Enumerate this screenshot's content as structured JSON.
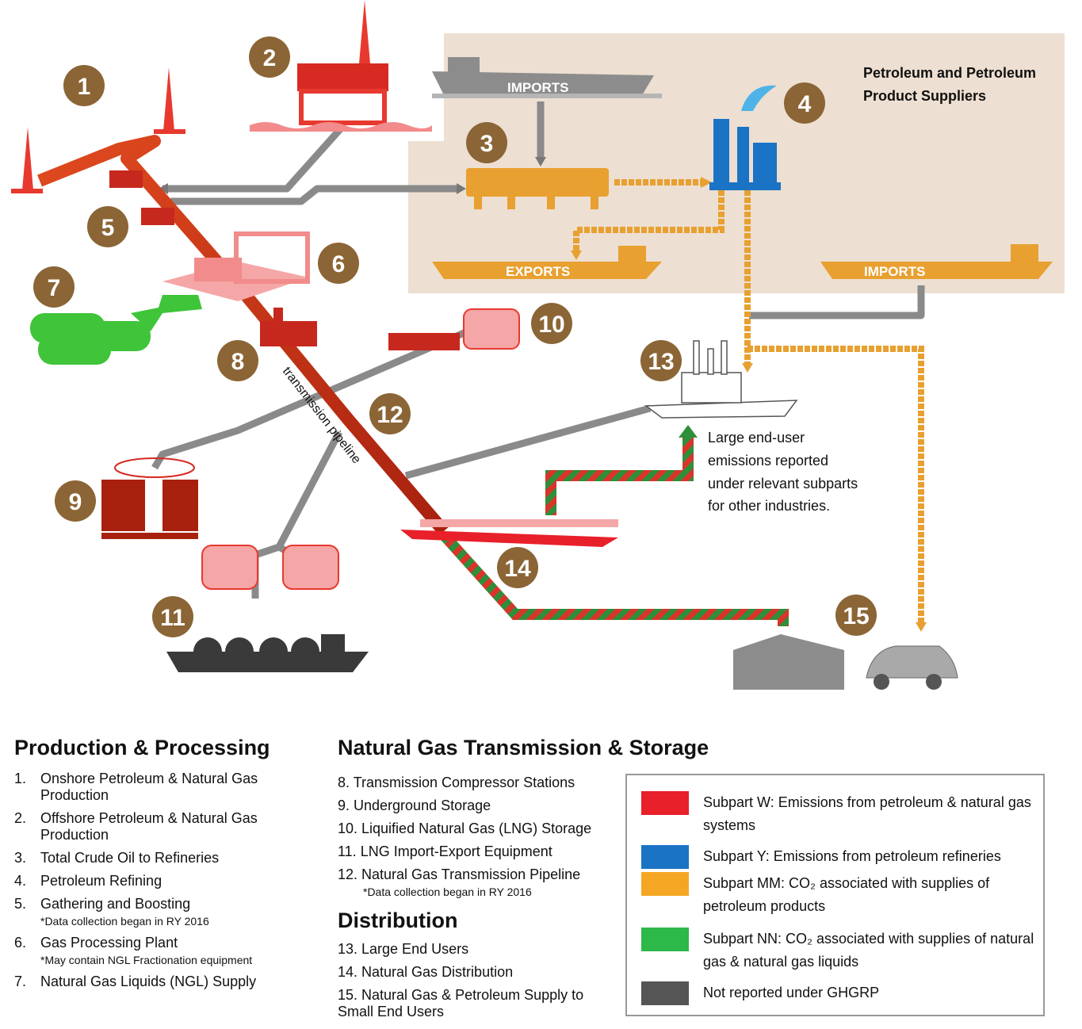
{
  "diagram": {
    "region_title_line1": "Petroleum and Petroleum",
    "region_title_line2": "Product Suppliers",
    "ship_imports_top": "IMPORTS",
    "ship_exports": "EXPORTS",
    "ship_imports_right": "IMPORTS",
    "pipeline_label": "transmission pipeline",
    "end_user_note": [
      "Large end-user",
      "emissions reported",
      "under relevant subparts",
      "for other industries."
    ],
    "markers": [
      "1",
      "2",
      "3",
      "4",
      "5",
      "6",
      "7",
      "8",
      "9",
      "10",
      "11",
      "12",
      "13",
      "14",
      "15"
    ]
  },
  "production": {
    "heading": "Production & Processing",
    "items": [
      {
        "num": "1.",
        "text": "Onshore Petroleum & Natural Gas Production",
        "note": ""
      },
      {
        "num": "2.",
        "text": "Offshore Petroleum & Natural Gas Production",
        "note": ""
      },
      {
        "num": "3.",
        "text": "Total Crude Oil to Refineries",
        "note": ""
      },
      {
        "num": "4.",
        "text": "Petroleum Refining",
        "note": ""
      },
      {
        "num": "5.",
        "text": "Gathering and Boosting",
        "note": "*Data collection began in RY 2016"
      },
      {
        "num": "6.",
        "text": "Gas Processing Plant",
        "note": "*May contain NGL Fractionation equipment"
      },
      {
        "num": "7.",
        "text": "Natural Gas Liquids (NGL) Supply",
        "note": ""
      }
    ]
  },
  "transmission": {
    "heading": "Natural Gas Transmission & Storage",
    "items": [
      {
        "text": "8. Transmission Compressor Stations",
        "note": ""
      },
      {
        "text": "9. Underground Storage",
        "note": ""
      },
      {
        "text": "10. Liquified Natural Gas (LNG) Storage",
        "note": ""
      },
      {
        "text": "11. LNG Import-Export Equipment",
        "note": ""
      },
      {
        "text": "12. Natural Gas Transmission Pipeline",
        "note": "*Data collection began in RY 2016"
      }
    ]
  },
  "distribution": {
    "heading": "Distribution",
    "items": [
      {
        "text": "13. Large End Users"
      },
      {
        "text": "14. Natural Gas Distribution"
      },
      {
        "text": "15. Natural Gas & Petroleum Supply to Small End Users"
      }
    ]
  },
  "legend": {
    "items": [
      {
        "color": "#e8202a",
        "text": "Subpart W: Emissions from petroleum & natural gas systems"
      },
      {
        "color": "#1a73c5",
        "text": "Subpart Y: Emissions from petroleum refineries"
      },
      {
        "color": "#f5a623",
        "text": "Subpart MM: CO₂ associated with supplies of petroleum products"
      },
      {
        "color": "#2db84a",
        "text": "Subpart NN: CO₂ associated with supplies of natural gas & natural gas liquids"
      },
      {
        "color": "#555555",
        "text": "Not reported under GHGRP"
      }
    ]
  }
}
